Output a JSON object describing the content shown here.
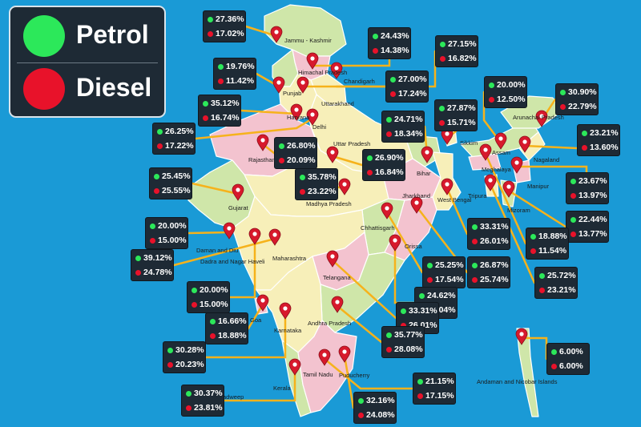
{
  "legend": {
    "petrol_label": "Petrol",
    "diesel_label": "Diesel",
    "petrol_color": "#2ce85a",
    "diesel_color": "#e8122a"
  },
  "regions": [
    {
      "key": "jk",
      "name": "Jammu - Kashmir",
      "petrol": "27.36%",
      "diesel": "17.02%"
    },
    {
      "key": "hp",
      "name": "Himachal Pradesh",
      "petrol": "24.43%",
      "diesel": "14.38%"
    },
    {
      "key": "pb",
      "name": "Punjab",
      "petrol": "19.76%",
      "diesel": "11.42%"
    },
    {
      "key": "ch",
      "name": "Chandigarh",
      "petrol": "27.00%",
      "diesel": "17.24%"
    },
    {
      "key": "uk",
      "name": "Uttarakhand",
      "petrol": "27.15%",
      "diesel": "16.82%"
    },
    {
      "key": "hr",
      "name": "Haryana",
      "petrol": "35.12%",
      "diesel": "16.74%"
    },
    {
      "key": "dl",
      "name": "Delhi",
      "petrol": "26.25%",
      "diesel": "17.22%"
    },
    {
      "key": "rj",
      "name": "Rajasthan",
      "petrol": "26.80%",
      "diesel": "20.09%"
    },
    {
      "key": "up",
      "name": "Uttar Pradesh",
      "petrol": "26.90%",
      "diesel": "16.84%"
    },
    {
      "key": "br",
      "name": "Bihar",
      "petrol": "24.71%",
      "diesel": "18.34%"
    },
    {
      "key": "sk",
      "name": "Sikkim",
      "petrol": "27.87%",
      "diesel": "15.71%"
    },
    {
      "key": "ar",
      "name": "Arunachal Pradesh",
      "petrol": "30.90%",
      "diesel": "22.79%"
    },
    {
      "key": "as",
      "name": "Assam",
      "petrol": "20.00%",
      "diesel": "12.50%"
    },
    {
      "key": "nl",
      "name": "Nagaland",
      "petrol": "23.21%",
      "diesel": "13.60%"
    },
    {
      "key": "mn",
      "name": "Manipur",
      "petrol": "23.67%",
      "diesel": "13.97%"
    },
    {
      "key": "mz",
      "name": "Mizoram",
      "petrol": "22.44%",
      "diesel": "13.77%"
    },
    {
      "key": "gj",
      "name": "Gujarat",
      "petrol": "25.45%",
      "diesel": "25.55%"
    },
    {
      "key": "mp",
      "name": "Madhya Pradesh",
      "petrol": "35.78%",
      "diesel": "23.22%"
    },
    {
      "key": "dd",
      "name": "Daman and Diu",
      "petrol": "20.00%",
      "diesel": "15.00%"
    },
    {
      "key": "mh",
      "name": "Maharashtra",
      "petrol": "39.12%",
      "diesel": "24.78%"
    },
    {
      "key": "dnh",
      "name": "Dadra and Nagar Haveli",
      "petrol": "20.00%",
      "diesel": "15.00%"
    },
    {
      "key": "ml",
      "name": "Meghalaya",
      "petrol": "18.88%",
      "diesel": "11.54%"
    },
    {
      "key": "tr",
      "name": "Tripura",
      "petrol": "25.72%",
      "diesel": "23.21%"
    },
    {
      "key": "wb",
      "name": "West Bengal",
      "petrol": "33.31%",
      "diesel": "26.01%"
    },
    {
      "key": "jh",
      "name": "Jharkhand",
      "petrol": "26.87%",
      "diesel": "25.74%"
    },
    {
      "key": "cg",
      "name": "Chhattisgarh",
      "petrol": "25.25%",
      "diesel": "17.54%"
    },
    {
      "key": "or",
      "name": "Orissa",
      "petrol": "24.62%",
      "diesel": "25.04%"
    },
    {
      "key": "tg",
      "name": "Telangana",
      "petrol": "33.31%",
      "diesel": "26.01%"
    },
    {
      "key": "ga",
      "name": "Goa",
      "petrol": "16.66%",
      "diesel": "18.88%"
    },
    {
      "key": "ka",
      "name": "Karnataka",
      "petrol": "30.28%",
      "diesel": "20.23%"
    },
    {
      "key": "ap",
      "name": "Andhra Pradesh",
      "petrol": "35.77%",
      "diesel": "28.08%"
    },
    {
      "key": "tn",
      "name": "Tamil Nadu",
      "petrol": "21.15%",
      "diesel": "17.15%"
    },
    {
      "key": "py",
      "name": "Puducherry",
      "petrol": "32.16%",
      "diesel": "24.08%"
    },
    {
      "key": "kl",
      "name": "Kerala",
      "petrol": "30.37%",
      "diesel": "23.81%"
    },
    {
      "key": "an",
      "name": "Andaman and Nicobar Islands",
      "petrol": "6.00%",
      "diesel": "6.00%"
    }
  ],
  "other_labels": {
    "lakshadweep": "Lakshadweep"
  }
}
